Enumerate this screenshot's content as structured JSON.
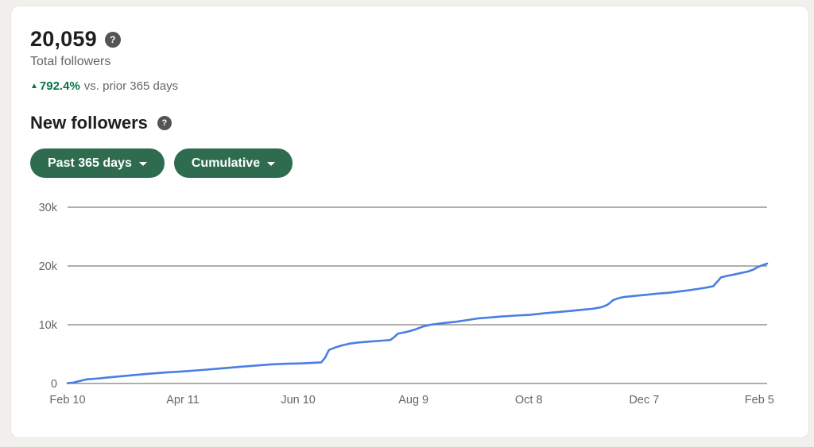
{
  "page": {
    "background": "#f2f0ec",
    "card_background": "#ffffff"
  },
  "summary": {
    "total_value": "20,059",
    "total_label": "Total followers",
    "trend_value": "792.4%",
    "trend_suffix": "vs. prior 365 days",
    "trend_color": "#057642"
  },
  "section": {
    "title": "New followers"
  },
  "icons": {
    "help": "?",
    "trend_up": "▲"
  },
  "filters": {
    "date_range_label": "Past 365 days",
    "metric_type_label": "Cumulative",
    "button_color": "#2e6b4f"
  },
  "chart_data": {
    "type": "line",
    "title": "New followers, cumulative, past 365 days",
    "x_range_days": [
      0,
      364
    ],
    "y_range": [
      0,
      30000
    ],
    "grid": true,
    "grid_color": "#7d7d7d",
    "axis_label_color": "#666666",
    "x_ticks": [
      {
        "day": 0,
        "label": "Feb 10"
      },
      {
        "day": 60,
        "label": "Apr 11"
      },
      {
        "day": 120,
        "label": "Jun 10"
      },
      {
        "day": 180,
        "label": "Aug 9"
      },
      {
        "day": 240,
        "label": "Oct 8"
      },
      {
        "day": 300,
        "label": "Dec 7"
      },
      {
        "day": 360,
        "label": "Feb 5"
      }
    ],
    "y_ticks": [
      {
        "value": 0,
        "label": "0"
      },
      {
        "value": 10000,
        "label": "10k"
      },
      {
        "value": 20000,
        "label": "20k"
      },
      {
        "value": 30000,
        "label": "30k"
      }
    ],
    "series": [
      {
        "name": "Cumulative new followers",
        "color": "#4a7ee3",
        "points": [
          [
            0,
            60
          ],
          [
            3,
            150
          ],
          [
            8,
            550
          ],
          [
            10,
            700
          ],
          [
            16,
            850
          ],
          [
            22,
            1050
          ],
          [
            30,
            1300
          ],
          [
            40,
            1600
          ],
          [
            50,
            1850
          ],
          [
            60,
            2050
          ],
          [
            70,
            2300
          ],
          [
            81,
            2600
          ],
          [
            90,
            2850
          ],
          [
            100,
            3100
          ],
          [
            106,
            3250
          ],
          [
            113,
            3350
          ],
          [
            120,
            3400
          ],
          [
            127,
            3500
          ],
          [
            132,
            3600
          ],
          [
            134,
            4400
          ],
          [
            136,
            5700
          ],
          [
            139,
            6100
          ],
          [
            143,
            6500
          ],
          [
            147,
            6800
          ],
          [
            152,
            7000
          ],
          [
            158,
            7150
          ],
          [
            164,
            7300
          ],
          [
            168,
            7400
          ],
          [
            170,
            7900
          ],
          [
            172,
            8500
          ],
          [
            176,
            8750
          ],
          [
            179,
            9000
          ],
          [
            181,
            9200
          ],
          [
            185,
            9700
          ],
          [
            189,
            10000
          ],
          [
            195,
            10250
          ],
          [
            202,
            10500
          ],
          [
            208,
            10800
          ],
          [
            214,
            11100
          ],
          [
            220,
            11250
          ],
          [
            226,
            11400
          ],
          [
            233,
            11550
          ],
          [
            241,
            11700
          ],
          [
            248,
            11950
          ],
          [
            255,
            12150
          ],
          [
            262,
            12350
          ],
          [
            268,
            12550
          ],
          [
            273,
            12700
          ],
          [
            278,
            13000
          ],
          [
            281,
            13400
          ],
          [
            284,
            14200
          ],
          [
            287,
            14550
          ],
          [
            290,
            14750
          ],
          [
            295,
            14900
          ],
          [
            301,
            15100
          ],
          [
            307,
            15300
          ],
          [
            313,
            15450
          ],
          [
            318,
            15650
          ],
          [
            323,
            15850
          ],
          [
            328,
            16100
          ],
          [
            332,
            16300
          ],
          [
            336,
            16550
          ],
          [
            338,
            17300
          ],
          [
            340,
            18050
          ],
          [
            343,
            18300
          ],
          [
            347,
            18550
          ],
          [
            351,
            18850
          ],
          [
            354,
            19050
          ],
          [
            357,
            19400
          ],
          [
            359,
            19800
          ],
          [
            361,
            20050
          ],
          [
            364,
            20400
          ]
        ]
      }
    ]
  }
}
